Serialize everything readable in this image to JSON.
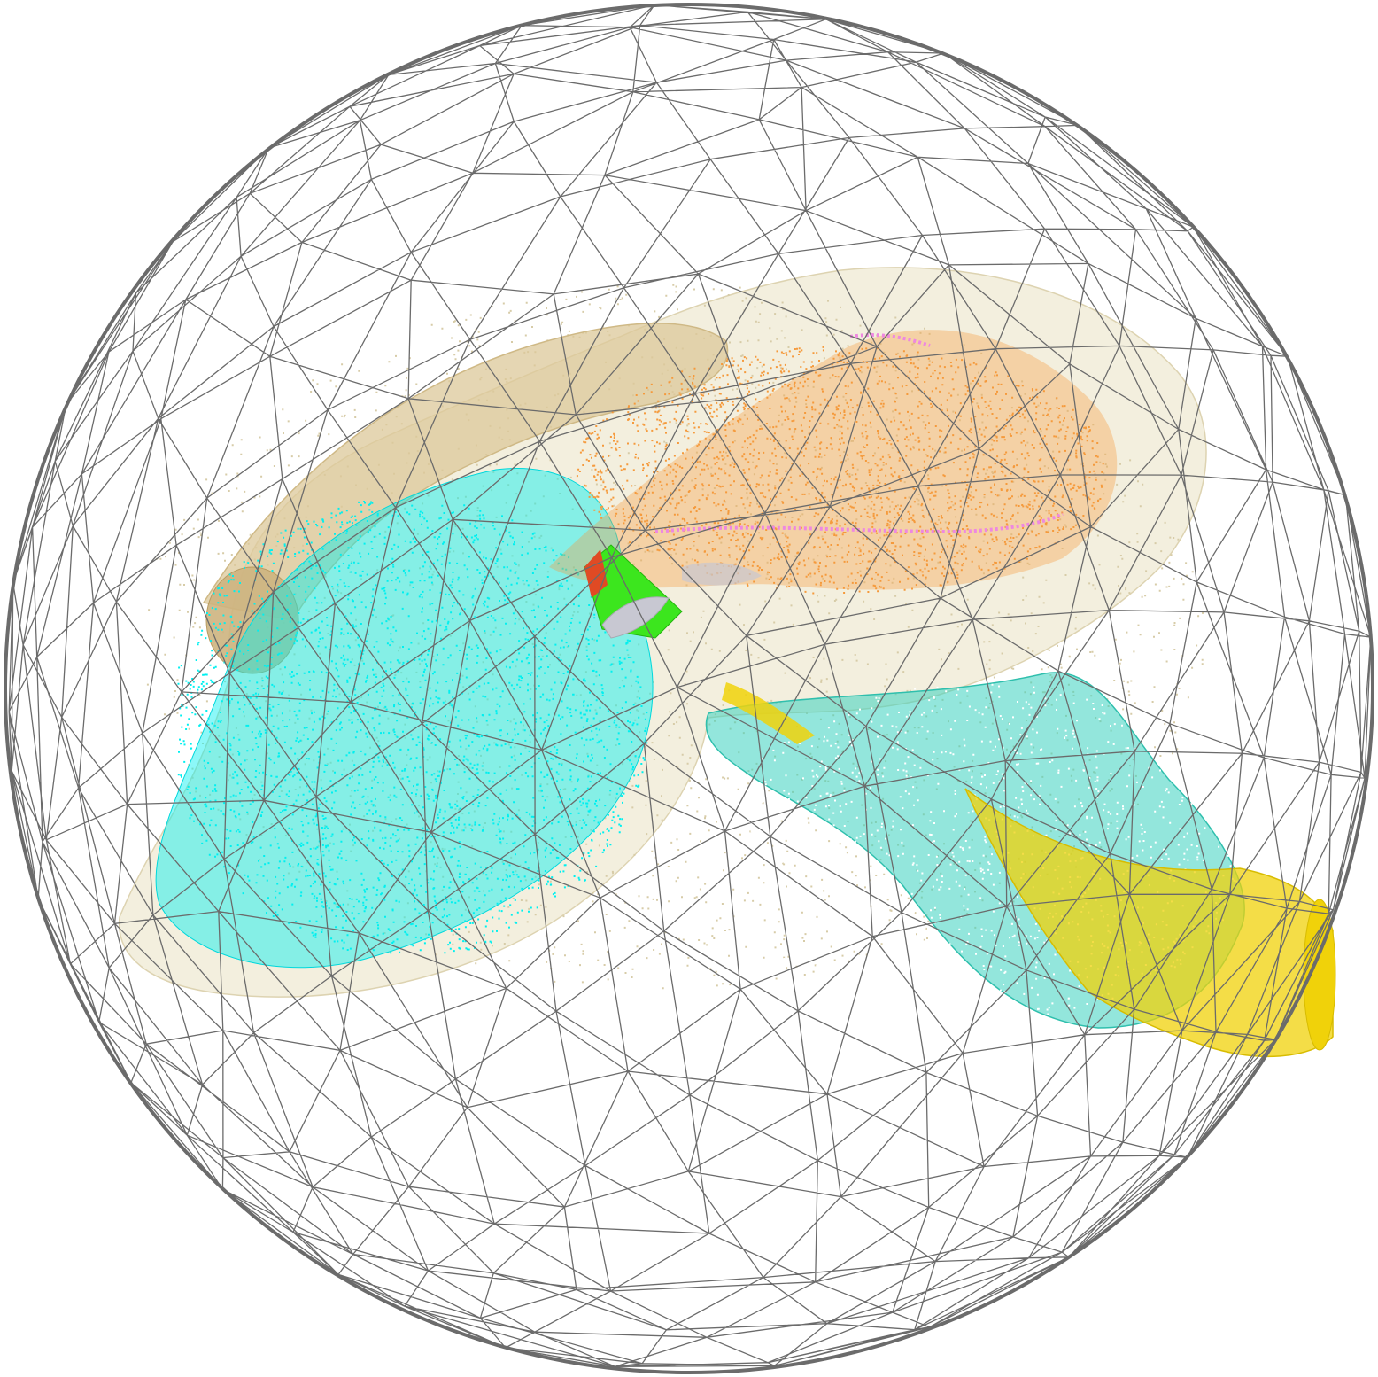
{
  "viewer": {
    "background": "#ffffff",
    "bounding_sphere": {
      "type": "wireframe-geodesic-sphere",
      "color": "#6b6b6b"
    },
    "structures": [
      {
        "id": "cortex-shell",
        "style": "wireframe",
        "color": "#e8e0c4"
      },
      {
        "id": "corpus-callosum",
        "style": "wireframe",
        "color": "#dcc89a"
      },
      {
        "id": "striatum",
        "style": "point-cloud",
        "color": "#00f0f0"
      },
      {
        "id": "hippocampus",
        "style": "point-cloud",
        "color": "#f59a3c"
      },
      {
        "id": "thalamus-highlight",
        "style": "point-cloud",
        "color": "#ee88e0"
      },
      {
        "id": "green-nucleus",
        "style": "solid",
        "color": "#3ce61e"
      },
      {
        "id": "red-nucleus",
        "style": "solid",
        "color": "#e04a24"
      },
      {
        "id": "grey-nucleus",
        "style": "solid",
        "color": "#c8c8d2"
      },
      {
        "id": "olfactory-bulb",
        "style": "solid",
        "color": "#cdb480"
      },
      {
        "id": "cerebellum",
        "style": "wireframe",
        "color": "#3ad2c0"
      },
      {
        "id": "brainstem",
        "style": "wireframe",
        "color": "#f0d20a"
      }
    ]
  }
}
